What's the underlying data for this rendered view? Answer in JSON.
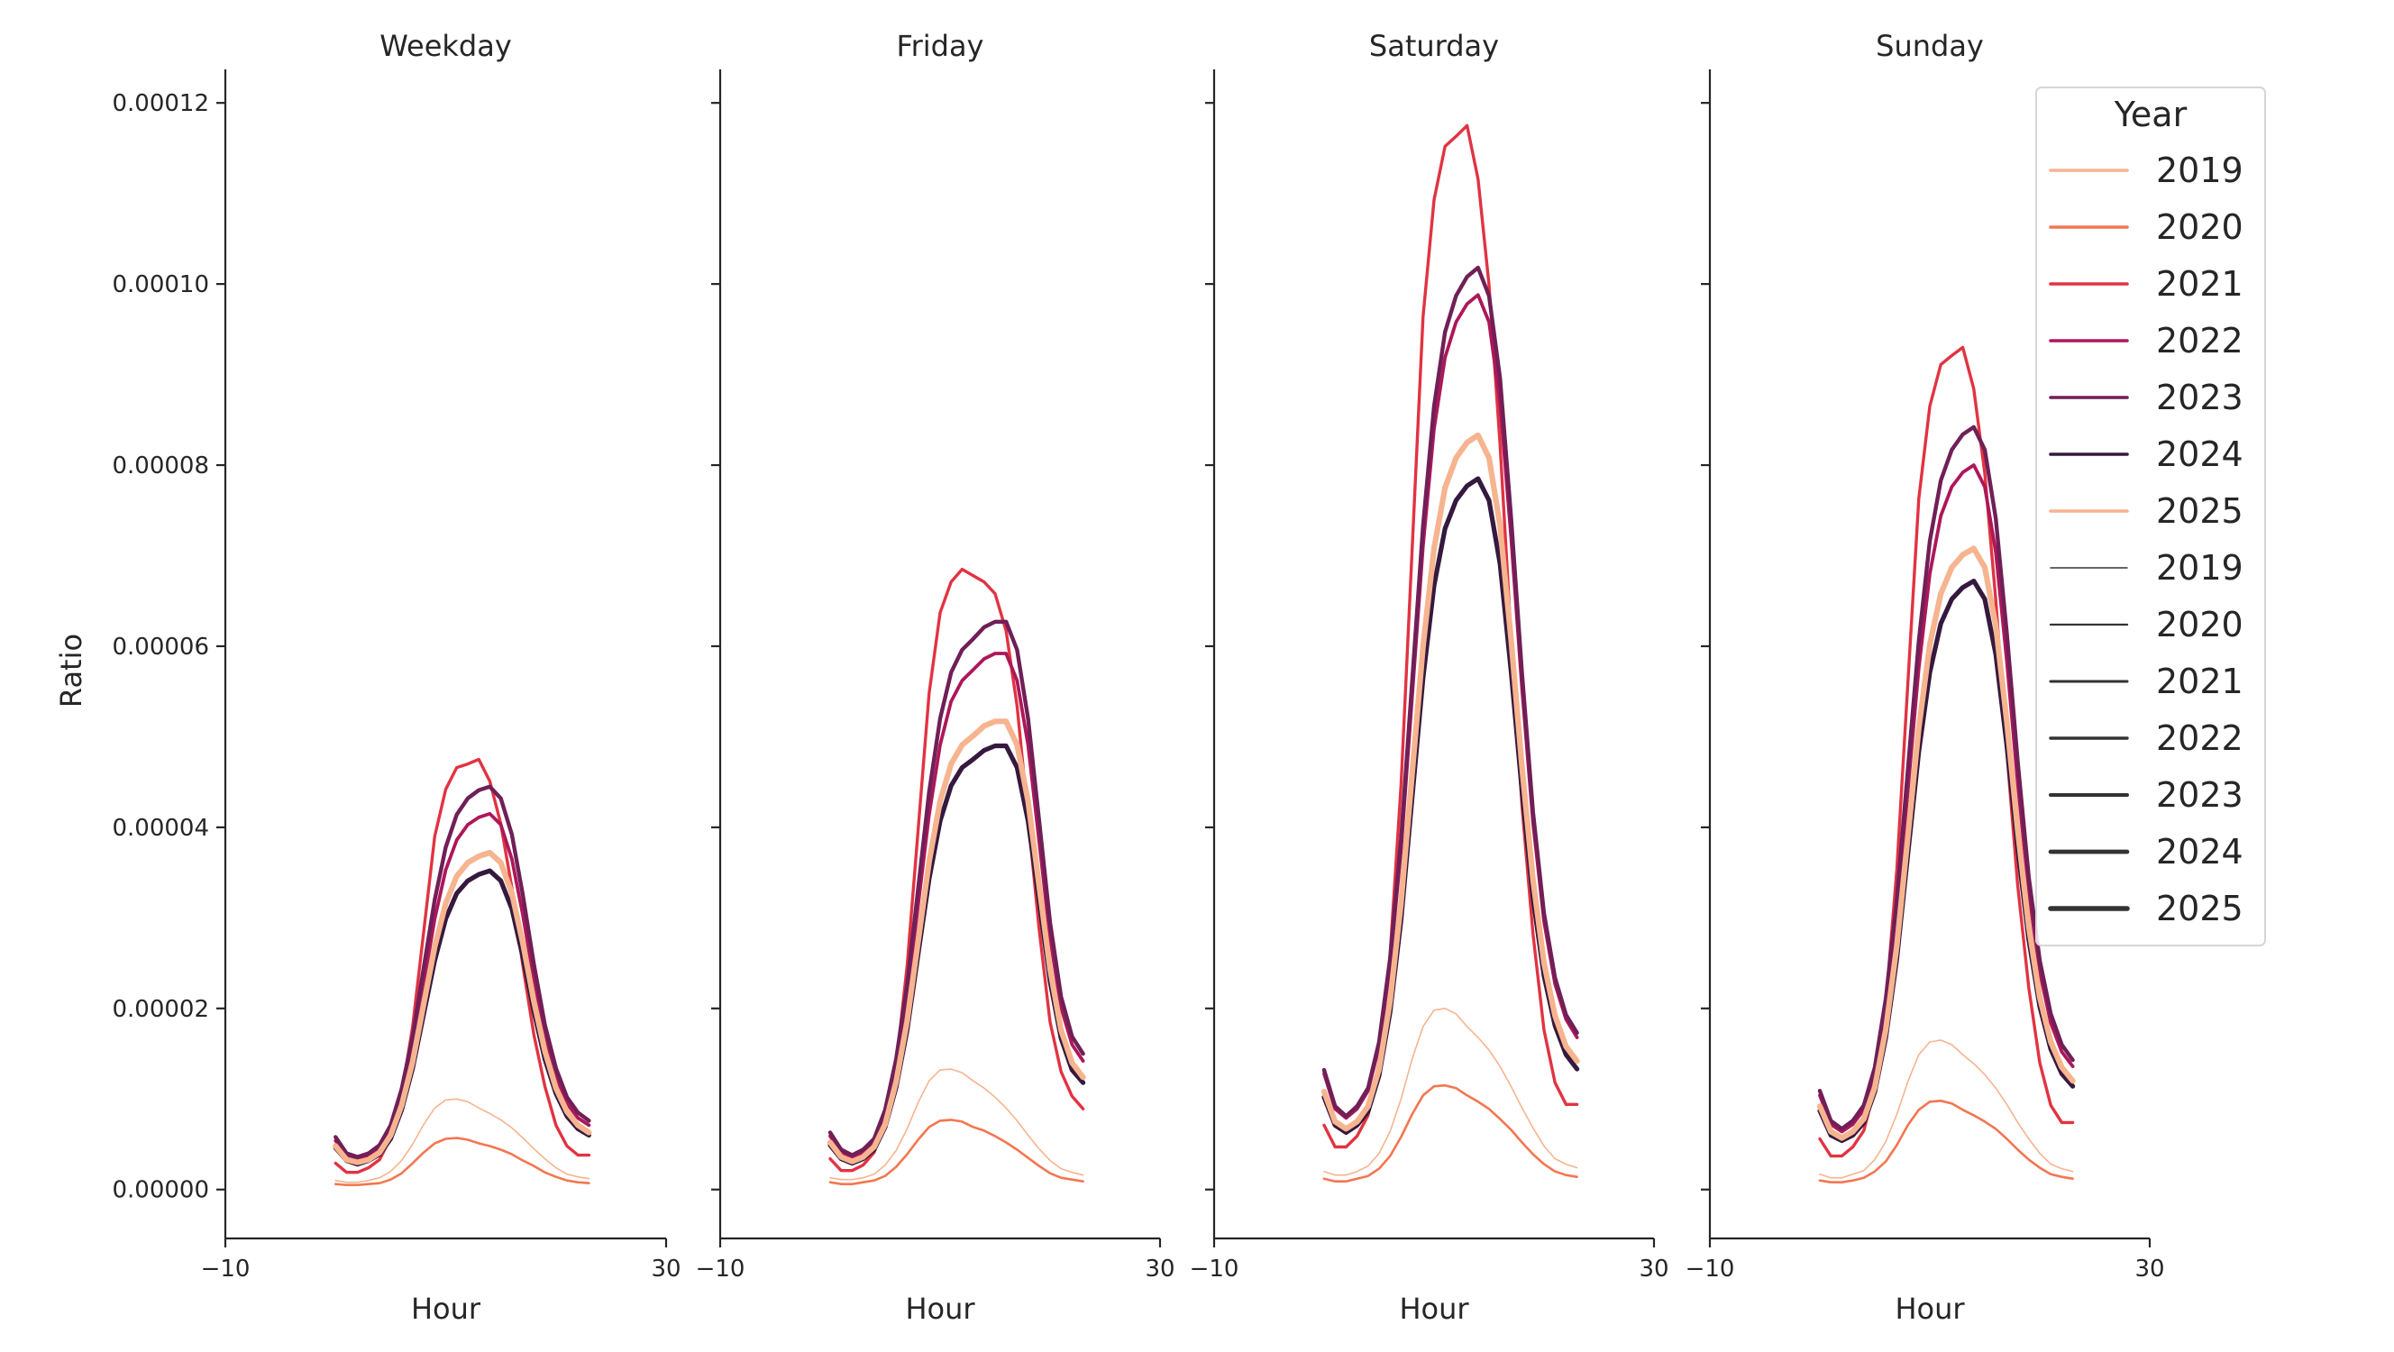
{
  "chart_data": {
    "type": "line",
    "xlabel": "Hour",
    "ylabel": "Ratio",
    "xlim": [
      -10,
      30
    ],
    "ylim": [
      -5.4e-06,
      0.0001237
    ],
    "x_ticks": [
      -10,
      30
    ],
    "x_tick_labels": [
      "−10",
      "30"
    ],
    "y_ticks": [
      0,
      2e-05,
      4e-05,
      6e-05,
      8e-05,
      0.0001,
      0.00012
    ],
    "y_tick_labels": [
      "0.00000",
      "0.00002",
      "0.00004",
      "0.00006",
      "0.00008",
      "0.00010",
      "0.00012"
    ],
    "value_multiplier": 1e-05,
    "grid": false,
    "legend": {
      "title": "Year",
      "placement": "top-right",
      "hue_entries": [
        "2019",
        "2020",
        "2021",
        "2022",
        "2023",
        "2024",
        "2025"
      ],
      "size_entries": [
        "2019",
        "2020",
        "2021",
        "2022",
        "2023",
        "2024",
        "2025"
      ]
    },
    "series_style": {
      "2019": {
        "color": "#f6b48f",
        "width": 1.6
      },
      "2020": {
        "color": "#f37651",
        "width": 2.6
      },
      "2021": {
        "color": "#e13342",
        "width": 3.4
      },
      "2022": {
        "color": "#ad1759",
        "width": 3.8
      },
      "2023": {
        "color": "#701f57",
        "width": 4.4
      },
      "2024": {
        "color": "#35193e",
        "width": 5.2
      },
      "2025": {
        "color": "#f6b48f",
        "width": 6.2
      }
    },
    "x": [
      0,
      1,
      2,
      3,
      4,
      5,
      6,
      7,
      8,
      9,
      10,
      11,
      12,
      13,
      14,
      15,
      16,
      17,
      18,
      19,
      20,
      21,
      22,
      23
    ],
    "panels": [
      {
        "title": "Weekday",
        "series": [
          {
            "name": "2019",
            "values": [
              0.1,
              0.08,
              0.08,
              0.1,
              0.13,
              0.2,
              0.32,
              0.5,
              0.72,
              0.9,
              0.99,
              1.0,
              0.97,
              0.9,
              0.84,
              0.77,
              0.68,
              0.57,
              0.45,
              0.34,
              0.24,
              0.17,
              0.14,
              0.12
            ]
          },
          {
            "name": "2020",
            "values": [
              0.06,
              0.05,
              0.05,
              0.06,
              0.07,
              0.11,
              0.18,
              0.29,
              0.41,
              0.51,
              0.56,
              0.57,
              0.55,
              0.51,
              0.48,
              0.44,
              0.39,
              0.32,
              0.26,
              0.19,
              0.14,
              0.1,
              0.08,
              0.07
            ]
          },
          {
            "name": "2021",
            "values": [
              0.29,
              0.19,
              0.19,
              0.24,
              0.33,
              0.57,
              1.05,
              1.8,
              2.85,
              3.9,
              4.42,
              4.66,
              4.7,
              4.75,
              4.51,
              4.04,
              3.33,
              2.47,
              1.71,
              1.14,
              0.71,
              0.48,
              0.38,
              0.38
            ]
          },
          {
            "name": "2022",
            "values": [
              0.54,
              0.37,
              0.33,
              0.37,
              0.46,
              0.66,
              1.04,
              1.58,
              2.28,
              2.99,
              3.53,
              3.86,
              4.03,
              4.11,
              4.15,
              4.03,
              3.65,
              3.03,
              2.32,
              1.7,
              1.25,
              0.95,
              0.79,
              0.71
            ]
          },
          {
            "name": "2023",
            "values": [
              0.58,
              0.4,
              0.36,
              0.4,
              0.49,
              0.71,
              1.11,
              1.69,
              2.45,
              3.2,
              3.78,
              4.14,
              4.32,
              4.41,
              4.45,
              4.32,
              3.92,
              3.25,
              2.49,
              1.82,
              1.34,
              1.02,
              0.85,
              0.76
            ]
          },
          {
            "name": "2024",
            "values": [
              0.46,
              0.32,
              0.28,
              0.32,
              0.39,
              0.56,
              0.88,
              1.34,
              1.94,
              2.53,
              2.99,
              3.27,
              3.41,
              3.48,
              3.52,
              3.41,
              3.1,
              2.57,
              1.97,
              1.44,
              1.06,
              0.81,
              0.67,
              0.6
            ]
          },
          {
            "name": "2025",
            "values": [
              0.48,
              0.33,
              0.3,
              0.33,
              0.41,
              0.6,
              0.93,
              1.41,
              2.05,
              2.68,
              3.16,
              3.46,
              3.61,
              3.68,
              3.72,
              3.61,
              3.27,
              2.72,
              2.08,
              1.53,
              1.12,
              0.86,
              0.71,
              0.63
            ]
          }
        ]
      },
      {
        "title": "Friday",
        "series": [
          {
            "name": "2019",
            "values": [
              0.13,
              0.11,
              0.11,
              0.13,
              0.17,
              0.27,
              0.43,
              0.67,
              0.96,
              1.2,
              1.32,
              1.33,
              1.29,
              1.2,
              1.12,
              1.02,
              0.9,
              0.76,
              0.6,
              0.45,
              0.32,
              0.23,
              0.19,
              0.16
            ]
          },
          {
            "name": "2020",
            "values": [
              0.08,
              0.06,
              0.06,
              0.08,
              0.1,
              0.15,
              0.25,
              0.39,
              0.55,
              0.69,
              0.76,
              0.77,
              0.75,
              0.69,
              0.65,
              0.59,
              0.52,
              0.44,
              0.35,
              0.26,
              0.18,
              0.13,
              0.11,
              0.09
            ]
          },
          {
            "name": "2021",
            "values": [
              0.34,
              0.21,
              0.21,
              0.27,
              0.41,
              0.75,
              1.37,
              2.47,
              3.97,
              5.48,
              6.37,
              6.71,
              6.85,
              6.78,
              6.71,
              6.58,
              6.17,
              5.34,
              4.11,
              2.88,
              1.85,
              1.3,
              1.03,
              0.89
            ]
          },
          {
            "name": "2022",
            "values": [
              0.59,
              0.41,
              0.36,
              0.41,
              0.53,
              0.83,
              1.36,
              2.13,
              3.14,
              4.14,
              4.91,
              5.39,
              5.62,
              5.74,
              5.86,
              5.92,
              5.92,
              5.62,
              4.91,
              3.85,
              2.78,
              2.01,
              1.6,
              1.42
            ]
          },
          {
            "name": "2023",
            "values": [
              0.63,
              0.44,
              0.38,
              0.44,
              0.56,
              0.88,
              1.44,
              2.26,
              3.32,
              4.39,
              5.2,
              5.71,
              5.96,
              6.08,
              6.21,
              6.27,
              6.27,
              5.96,
              5.2,
              4.08,
              2.95,
              2.13,
              1.69,
              1.5
            ]
          },
          {
            "name": "2024",
            "values": [
              0.49,
              0.34,
              0.29,
              0.34,
              0.44,
              0.69,
              1.13,
              1.76,
              2.6,
              3.43,
              4.07,
              4.46,
              4.66,
              4.75,
              4.85,
              4.9,
              4.9,
              4.66,
              4.07,
              3.19,
              2.3,
              1.67,
              1.32,
              1.18
            ]
          },
          {
            "name": "2025",
            "values": [
              0.52,
              0.36,
              0.31,
              0.36,
              0.47,
              0.72,
              1.19,
              1.86,
              2.74,
              3.62,
              4.29,
              4.7,
              4.91,
              5.01,
              5.12,
              5.17,
              5.17,
              4.91,
              4.29,
              3.36,
              2.43,
              1.76,
              1.4,
              1.24
            ]
          }
        ]
      },
      {
        "title": "Saturday",
        "series": [
          {
            "name": "2019",
            "values": [
              0.2,
              0.16,
              0.16,
              0.2,
              0.26,
              0.4,
              0.64,
              1.0,
              1.44,
              1.8,
              1.98,
              2.0,
              1.94,
              1.8,
              1.68,
              1.54,
              1.36,
              1.14,
              0.9,
              0.68,
              0.48,
              0.34,
              0.28,
              0.24
            ]
          },
          {
            "name": "2020",
            "values": [
              0.12,
              0.09,
              0.09,
              0.12,
              0.15,
              0.23,
              0.37,
              0.58,
              0.83,
              1.04,
              1.14,
              1.15,
              1.12,
              1.04,
              0.97,
              0.89,
              0.78,
              0.66,
              0.52,
              0.39,
              0.28,
              0.2,
              0.16,
              0.14
            ]
          },
          {
            "name": "2021",
            "values": [
              0.71,
              0.47,
              0.47,
              0.59,
              0.82,
              1.41,
              2.59,
              4.47,
              7.05,
              9.64,
              10.93,
              11.52,
              11.63,
              11.75,
              11.16,
              9.99,
              8.23,
              6.11,
              4.23,
              2.82,
              1.76,
              1.18,
              0.94,
              0.94
            ]
          },
          {
            "name": "2022",
            "values": [
              1.28,
              0.89,
              0.79,
              0.89,
              1.09,
              1.58,
              2.47,
              3.75,
              5.43,
              7.11,
              8.4,
              9.19,
              9.58,
              9.78,
              9.88,
              9.58,
              8.69,
              7.21,
              5.53,
              4.05,
              2.96,
              2.27,
              1.88,
              1.68
            ]
          },
          {
            "name": "2023",
            "values": [
              1.32,
              0.92,
              0.81,
              0.92,
              1.12,
              1.63,
              2.55,
              3.87,
              5.6,
              7.33,
              8.65,
              9.47,
              9.87,
              10.08,
              10.18,
              9.87,
              8.96,
              7.43,
              5.7,
              4.17,
              3.05,
              2.34,
              1.93,
              1.73
            ]
          },
          {
            "name": "2024",
            "values": [
              1.02,
              0.71,
              0.63,
              0.71,
              0.86,
              1.26,
              1.96,
              2.98,
              4.32,
              5.65,
              6.67,
              7.3,
              7.61,
              7.77,
              7.85,
              7.61,
              6.91,
              5.73,
              4.4,
              3.22,
              2.36,
              1.81,
              1.49,
              1.33
            ]
          },
          {
            "name": "2025",
            "values": [
              1.08,
              0.75,
              0.67,
              0.75,
              0.92,
              1.33,
              2.08,
              3.17,
              4.58,
              6.0,
              7.08,
              7.75,
              8.08,
              8.25,
              8.33,
              8.08,
              7.33,
              6.08,
              4.66,
              3.42,
              2.5,
              1.92,
              1.58,
              1.42
            ]
          }
        ]
      },
      {
        "title": "Sunday",
        "series": [
          {
            "name": "2019",
            "values": [
              0.17,
              0.13,
              0.13,
              0.17,
              0.21,
              0.33,
              0.53,
              0.83,
              1.19,
              1.49,
              1.63,
              1.65,
              1.6,
              1.49,
              1.39,
              1.27,
              1.12,
              0.94,
              0.74,
              0.56,
              0.4,
              0.28,
              0.23,
              0.2
            ]
          },
          {
            "name": "2020",
            "values": [
              0.1,
              0.08,
              0.08,
              0.1,
              0.13,
              0.2,
              0.31,
              0.49,
              0.71,
              0.88,
              0.97,
              0.98,
              0.95,
              0.88,
              0.82,
              0.75,
              0.67,
              0.56,
              0.44,
              0.33,
              0.24,
              0.17,
              0.14,
              0.12
            ]
          },
          {
            "name": "2021",
            "values": [
              0.56,
              0.37,
              0.37,
              0.47,
              0.65,
              1.12,
              2.05,
              3.53,
              5.58,
              7.63,
              8.65,
              9.11,
              9.21,
              9.3,
              8.84,
              7.91,
              6.51,
              4.84,
              3.35,
              2.23,
              1.4,
              0.93,
              0.74,
              0.74
            ]
          },
          {
            "name": "2022",
            "values": [
              1.04,
              0.72,
              0.64,
              0.72,
              0.88,
              1.28,
              2.0,
              3.04,
              4.4,
              5.76,
              6.8,
              7.44,
              7.76,
              7.92,
              8.0,
              7.76,
              7.04,
              5.84,
              4.48,
              3.28,
              2.4,
              1.84,
              1.52,
              1.36
            ]
          },
          {
            "name": "2023",
            "values": [
              1.09,
              0.76,
              0.67,
              0.76,
              0.93,
              1.35,
              2.11,
              3.2,
              4.63,
              6.06,
              7.16,
              7.83,
              8.17,
              8.34,
              8.42,
              8.17,
              7.41,
              6.15,
              4.72,
              3.45,
              2.53,
              1.94,
              1.6,
              1.43
            ]
          },
          {
            "name": "2024",
            "values": [
              0.87,
              0.6,
              0.54,
              0.6,
              0.74,
              1.08,
              1.68,
              2.55,
              3.7,
              4.84,
              5.71,
              6.25,
              6.52,
              6.65,
              6.72,
              6.52,
              5.91,
              4.91,
              3.76,
              2.76,
              2.02,
              1.55,
              1.28,
              1.14
            ]
          },
          {
            "name": "2025",
            "values": [
              0.92,
              0.64,
              0.57,
              0.64,
              0.78,
              1.13,
              1.77,
              2.69,
              3.89,
              5.1,
              6.02,
              6.58,
              6.87,
              7.01,
              7.08,
              6.87,
              6.23,
              5.17,
              3.96,
              2.9,
              2.12,
              1.63,
              1.35,
              1.2
            ]
          }
        ]
      }
    ]
  }
}
